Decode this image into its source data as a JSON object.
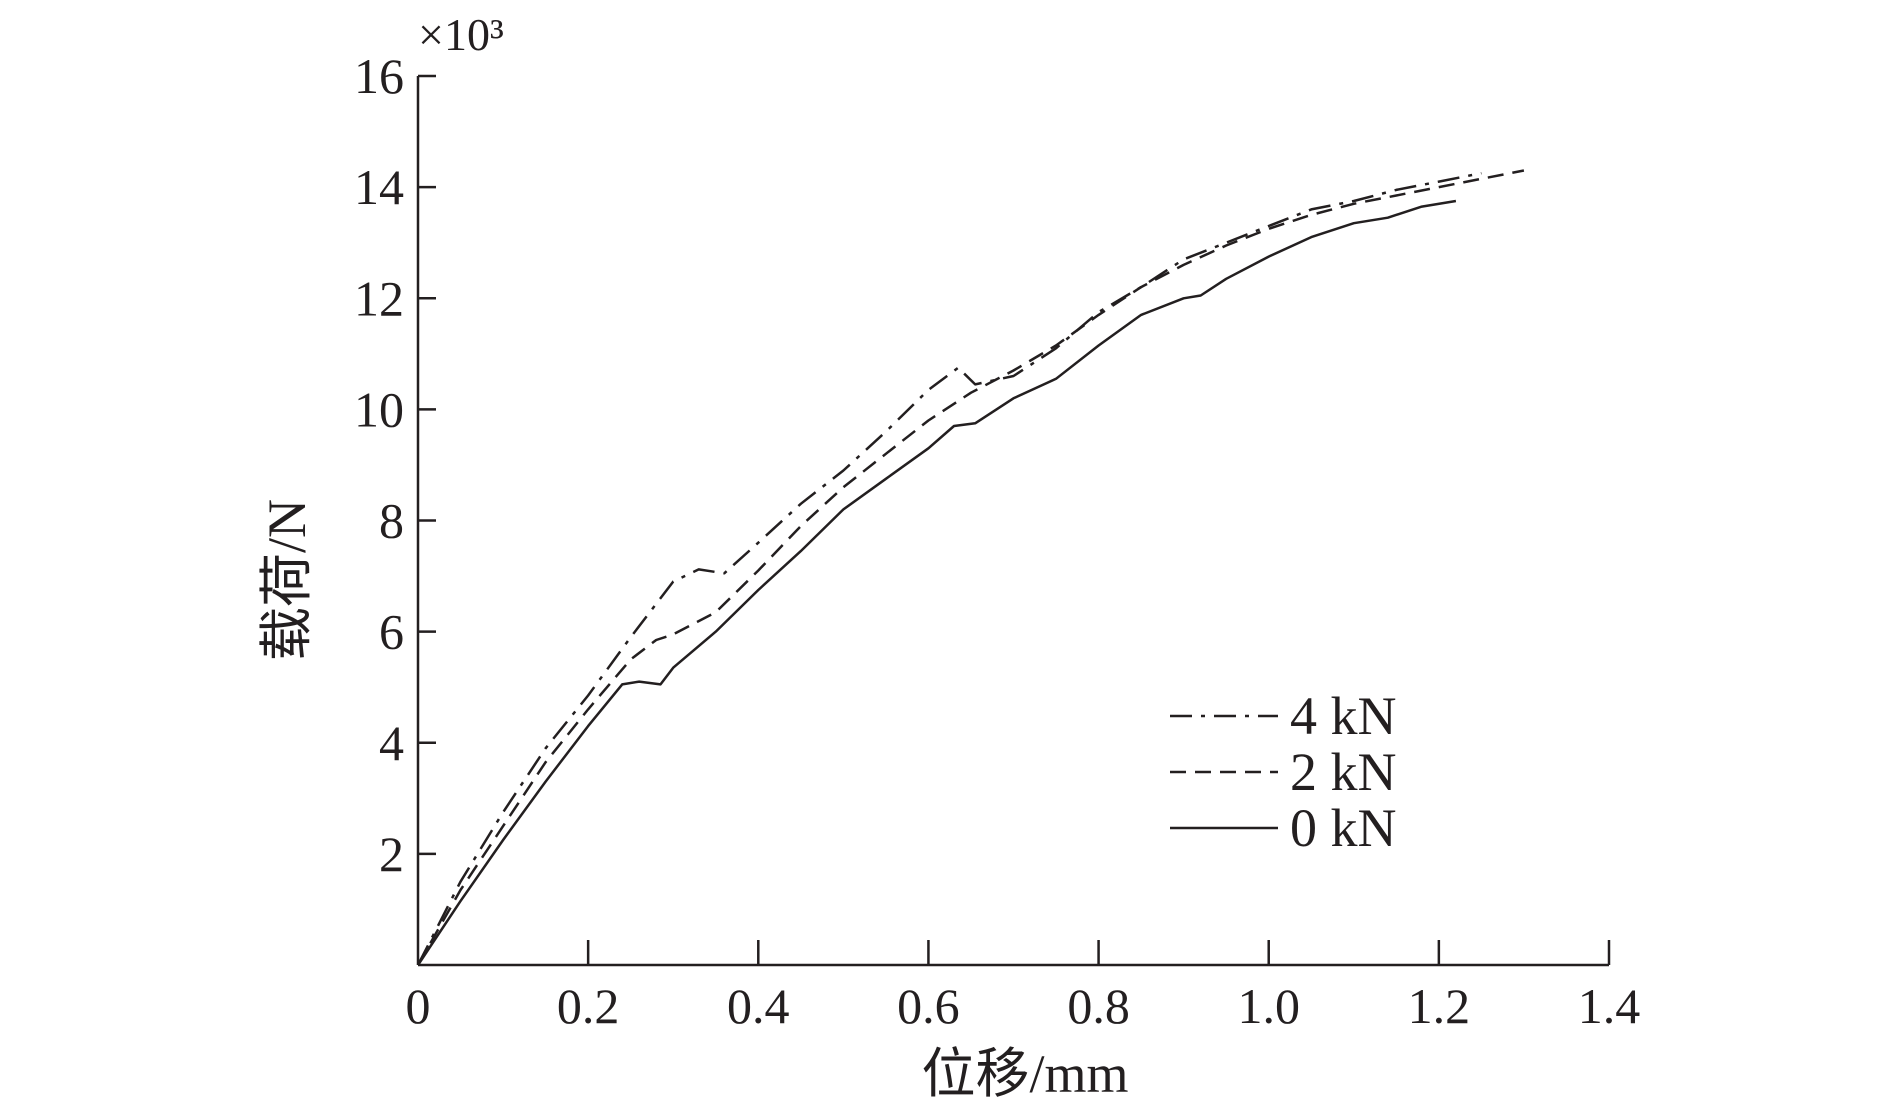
{
  "chart_data": {
    "type": "line",
    "xlabel": "位移/mm",
    "ylabel": "载荷/N",
    "y_multiplier": "×10³",
    "x_ticks": [
      "0",
      "0.2",
      "0.4",
      "0.6",
      "0.8",
      "1.0",
      "1.2",
      "1.4"
    ],
    "y_ticks": [
      "2",
      "4",
      "6",
      "8",
      "10",
      "12",
      "14",
      "16"
    ],
    "xlim": [
      0,
      1.4
    ],
    "ylim": [
      0,
      16
    ],
    "grid": false,
    "legend_position": "lower-right",
    "series": [
      {
        "name": "4 kN",
        "style": "dashdot",
        "points": [
          [
            0,
            0
          ],
          [
            0.05,
            1.5
          ],
          [
            0.1,
            2.75
          ],
          [
            0.15,
            3.9
          ],
          [
            0.2,
            4.85
          ],
          [
            0.25,
            5.9
          ],
          [
            0.3,
            6.9
          ],
          [
            0.33,
            7.12
          ],
          [
            0.36,
            7.05
          ],
          [
            0.4,
            7.6
          ],
          [
            0.45,
            8.3
          ],
          [
            0.5,
            8.9
          ],
          [
            0.55,
            9.6
          ],
          [
            0.6,
            10.35
          ],
          [
            0.635,
            10.75
          ],
          [
            0.655,
            10.45
          ],
          [
            0.7,
            10.6
          ],
          [
            0.75,
            11.1
          ],
          [
            0.8,
            11.75
          ],
          [
            0.85,
            12.2
          ],
          [
            0.9,
            12.7
          ],
          [
            0.95,
            13.0
          ],
          [
            1.0,
            13.3
          ],
          [
            1.05,
            13.6
          ],
          [
            1.1,
            13.75
          ],
          [
            1.15,
            13.95
          ],
          [
            1.2,
            14.1
          ],
          [
            1.25,
            14.25
          ]
        ]
      },
      {
        "name": "2 kN",
        "style": "dashed",
        "points": [
          [
            0,
            0
          ],
          [
            0.05,
            1.35
          ],
          [
            0.1,
            2.5
          ],
          [
            0.15,
            3.65
          ],
          [
            0.2,
            4.6
          ],
          [
            0.25,
            5.5
          ],
          [
            0.28,
            5.85
          ],
          [
            0.3,
            5.95
          ],
          [
            0.35,
            6.35
          ],
          [
            0.4,
            7.1
          ],
          [
            0.45,
            7.9
          ],
          [
            0.5,
            8.6
          ],
          [
            0.55,
            9.2
          ],
          [
            0.6,
            9.8
          ],
          [
            0.65,
            10.3
          ],
          [
            0.7,
            10.7
          ],
          [
            0.75,
            11.15
          ],
          [
            0.8,
            11.7
          ],
          [
            0.85,
            12.2
          ],
          [
            0.9,
            12.6
          ],
          [
            0.95,
            12.95
          ],
          [
            1.0,
            13.25
          ],
          [
            1.05,
            13.5
          ],
          [
            1.1,
            13.7
          ],
          [
            1.15,
            13.85
          ],
          [
            1.2,
            14.0
          ],
          [
            1.25,
            14.15
          ],
          [
            1.3,
            14.3
          ]
        ]
      },
      {
        "name": "0 kN",
        "style": "solid",
        "points": [
          [
            0,
            0
          ],
          [
            0.05,
            1.15
          ],
          [
            0.1,
            2.25
          ],
          [
            0.15,
            3.3
          ],
          [
            0.2,
            4.3
          ],
          [
            0.24,
            5.05
          ],
          [
            0.26,
            5.1
          ],
          [
            0.285,
            5.05
          ],
          [
            0.3,
            5.35
          ],
          [
            0.35,
            6.0
          ],
          [
            0.4,
            6.75
          ],
          [
            0.45,
            7.45
          ],
          [
            0.5,
            8.2
          ],
          [
            0.55,
            8.75
          ],
          [
            0.6,
            9.3
          ],
          [
            0.63,
            9.7
          ],
          [
            0.655,
            9.75
          ],
          [
            0.7,
            10.2
          ],
          [
            0.75,
            10.55
          ],
          [
            0.8,
            11.15
          ],
          [
            0.85,
            11.7
          ],
          [
            0.9,
            12.0
          ],
          [
            0.92,
            12.05
          ],
          [
            0.95,
            12.35
          ],
          [
            1.0,
            12.75
          ],
          [
            1.05,
            13.1
          ],
          [
            1.1,
            13.35
          ],
          [
            1.14,
            13.45
          ],
          [
            1.18,
            13.65
          ],
          [
            1.22,
            13.75
          ]
        ]
      }
    ]
  }
}
